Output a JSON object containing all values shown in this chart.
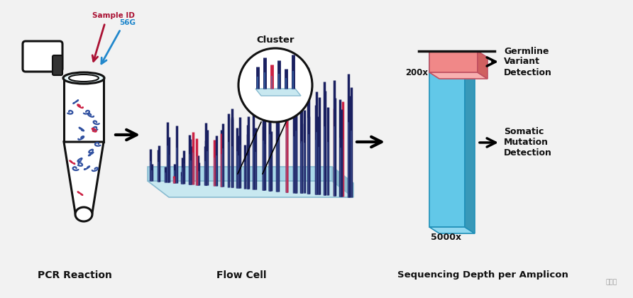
{
  "bg_color": "#f2f2f2",
  "label_pcr": "PCR Reaction",
  "label_flow": "Flow Cell",
  "label_seq": "Sequencing Depth per Amplicon",
  "cluster_label": "Cluster",
  "sample_id_label": "Sample ID",
  "s56g_label": "56G",
  "bar_5000_label": "5000x",
  "bar_200_label": "200x",
  "somatic_label": "Somatic\nMutation\nDetection",
  "germline_label": "Germline\nVariant\nDetection",
  "bar_blue_front": "#62c8e8",
  "bar_blue_side": "#3898b8",
  "bar_blue_top": "#90d8f0",
  "bar_pink_front": "#f08888",
  "bar_pink_top": "#f8b0b0",
  "bar_pink_side": "#d06060",
  "dark_blue": "#1a2060",
  "mid_blue": "#3050a0",
  "red_dna": "#cc2244",
  "sample_id_color": "#aa1133",
  "s56g_color": "#2288cc",
  "flow_top": "#c8e8f0",
  "flow_front": "#a8d8e8",
  "flow_side": "#90c0d0",
  "white": "#ffffff",
  "black": "#111111"
}
